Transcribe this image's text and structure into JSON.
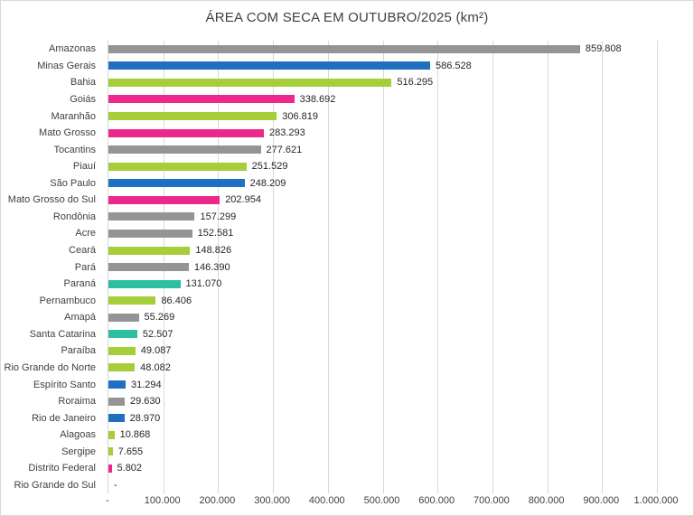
{
  "chart_data": {
    "type": "bar",
    "orientation": "horizontal",
    "title": "ÁREA COM SECA EM OUTUBRO/2025 (km²)",
    "xlabel": "",
    "ylabel": "",
    "xlim": [
      0,
      1000000
    ],
    "grid": true,
    "legend": "none",
    "x_ticks": [
      "-",
      "100.000",
      "200.000",
      "300.000",
      "400.000",
      "500.000",
      "600.000",
      "700.000",
      "800.000",
      "900.000",
      "1.000.000"
    ],
    "categories": [
      "Amazonas",
      "Minas Gerais",
      "Bahia",
      "Goiás",
      "Maranhão",
      "Mato Grosso",
      "Tocantins",
      "Piauí",
      "São Paulo",
      "Mato Grosso do Sul",
      "Rondônia",
      "Acre",
      "Ceará",
      "Pará",
      "Paraná",
      "Pernambuco",
      "Amapá",
      "Santa Catarina",
      "Paraíba",
      "Rio Grande do Norte",
      "Espírito Santo",
      "Roraima",
      "Rio de Janeiro",
      "Alagoas",
      "Sergipe",
      "Distrito Federal",
      "Rio Grande do Sul"
    ],
    "values": [
      859808,
      586528,
      516295,
      338692,
      306819,
      283293,
      277621,
      251529,
      248209,
      202954,
      157299,
      152581,
      148826,
      146390,
      131070,
      86406,
      55269,
      52507,
      49087,
      48082,
      31294,
      29630,
      28970,
      10868,
      7655,
      5802,
      0
    ],
    "value_labels": [
      "859.808",
      "586.528",
      "516.295",
      "338.692",
      "306.819",
      "283.293",
      "277.621",
      "251.529",
      "248.209",
      "202.954",
      "157.299",
      "152.581",
      "148.826",
      "146.390",
      "131.070",
      "86.406",
      "55.269",
      "52.507",
      "49.087",
      "48.082",
      "31.294",
      "29.630",
      "28.970",
      "10.868",
      "7.655",
      "5.802",
      "-"
    ],
    "bar_colors": [
      "gray",
      "blue",
      "green",
      "pink",
      "green",
      "pink",
      "gray",
      "green",
      "blue",
      "pink",
      "gray",
      "gray",
      "green",
      "gray",
      "teal",
      "green",
      "gray",
      "teal",
      "green",
      "green",
      "blue",
      "gray",
      "blue",
      "green",
      "green",
      "pink",
      "none"
    ],
    "palette": {
      "gray": "#949494",
      "blue": "#1f70c1",
      "green": "#a6ce39",
      "pink": "#ec298b",
      "teal": "#2cbfa0",
      "none": "transparent"
    }
  }
}
